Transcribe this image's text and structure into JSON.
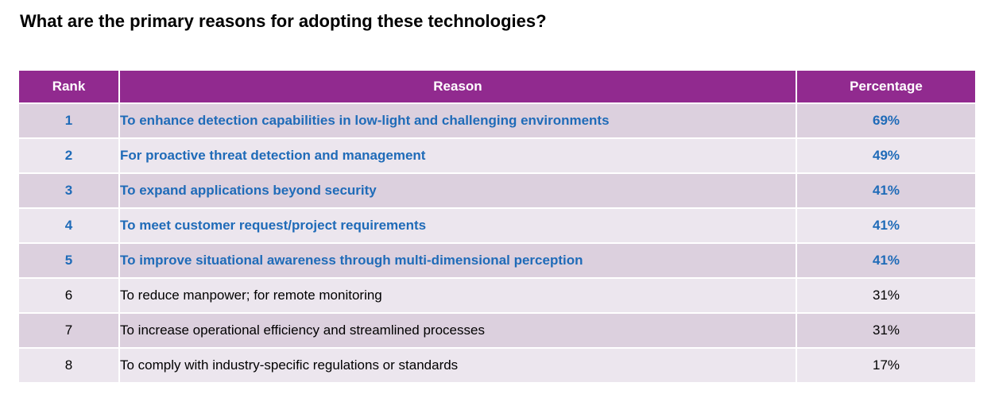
{
  "title": "What are the primary reasons for adopting these technologies?",
  "colors": {
    "header_bg": "#912a8f",
    "header_text": "#ffffff",
    "row_odd": "#dcd0de",
    "row_even": "#ece6ee",
    "highlight_text": "#1f6bb8",
    "normal_text": "#000000"
  },
  "chart_data": {
    "type": "table",
    "title": "What are the primary reasons for adopting these technologies?",
    "columns": [
      "Rank",
      "Reason",
      "Percentage"
    ],
    "rows": [
      {
        "rank": "1",
        "reason": "To enhance detection capabilities in low-light and challenging environments",
        "percentage": "69%",
        "highlighted": true
      },
      {
        "rank": "2",
        "reason": "For proactive threat detection and management",
        "percentage": "49%",
        "highlighted": true
      },
      {
        "rank": "3",
        "reason": "To expand applications beyond security",
        "percentage": "41%",
        "highlighted": true
      },
      {
        "rank": "4",
        "reason": "To meet customer request/project requirements",
        "percentage": "41%",
        "highlighted": true
      },
      {
        "rank": "5",
        "reason": "To improve situational awareness through multi-dimensional perception",
        "percentage": "41%",
        "highlighted": true
      },
      {
        "rank": "6",
        "reason": "To reduce manpower; for remote monitoring",
        "percentage": "31%",
        "highlighted": false
      },
      {
        "rank": "7",
        "reason": "To increase operational efficiency and streamlined processes",
        "percentage": "31%",
        "highlighted": false
      },
      {
        "rank": "8",
        "reason": "To comply with industry-specific regulations or standards",
        "percentage": "17%",
        "highlighted": false
      }
    ]
  }
}
